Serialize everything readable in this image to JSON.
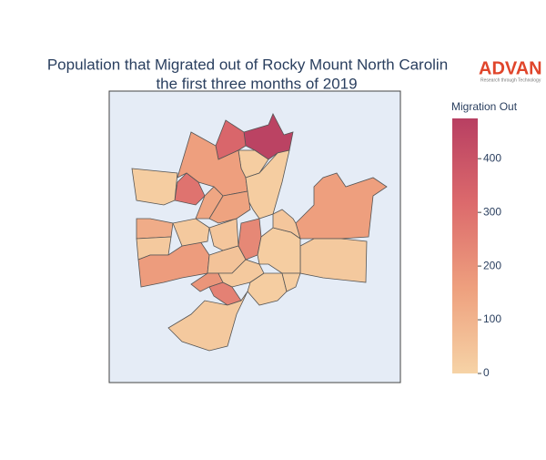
{
  "chart_data": {
    "type": "choropleth",
    "title_lines": [
      "Population that Migrated out of Rocky Mount North Carolin",
      "the first three months of 2019"
    ],
    "logo": {
      "name": "ADVAN",
      "tagline": "Research through Technology"
    },
    "values": [
      460,
      330,
      20,
      160,
      290,
      20,
      20,
      160,
      30,
      120,
      30,
      170,
      150,
      140,
      230,
      40,
      30,
      50,
      190,
      250,
      30,
      20,
      40,
      30,
      20,
      20
    ],
    "colorscale": [
      "#f6d3a6",
      "#eea07e",
      "#dc6a6c",
      "#b83f62"
    ],
    "colorbar": {
      "title": "Migration Out",
      "zlim": [
        0,
        475
      ],
      "ticks": [
        0,
        100,
        200,
        300,
        400
      ]
    }
  }
}
